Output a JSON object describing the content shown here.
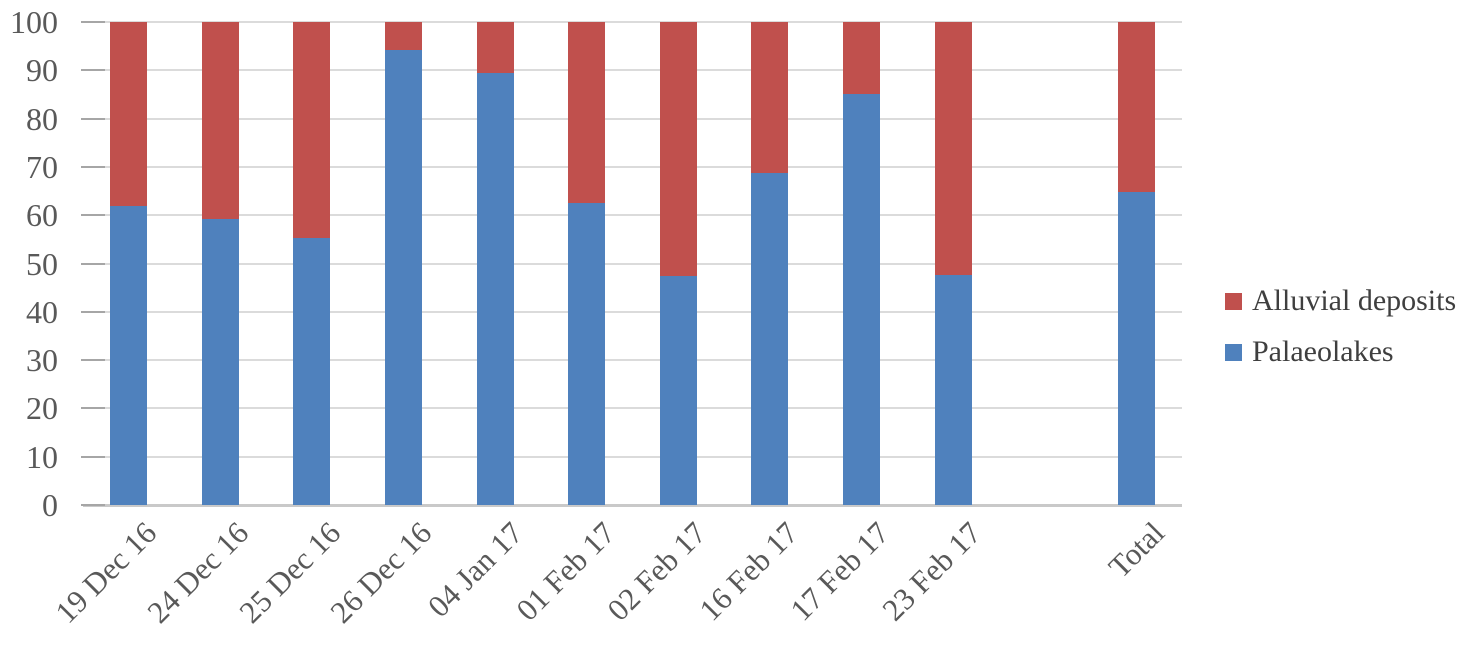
{
  "chart_data": {
    "type": "bar",
    "stacked": true,
    "orientation": "vertical",
    "title": "",
    "xlabel": "",
    "ylabel": "",
    "ylim": [
      0,
      100
    ],
    "yticks": [
      0,
      10,
      20,
      30,
      40,
      50,
      60,
      70,
      80,
      90,
      100
    ],
    "grid": true,
    "legend_position": "right",
    "categories": [
      "19 Dec 16",
      "24 Dec 16",
      "25 Dec 16",
      "26 Dec 16",
      "04 Jan 17",
      "01 Feb 17",
      "02 Feb 17",
      "16 Feb 17",
      "17 Feb 17",
      "23 Feb 17",
      "",
      "Total"
    ],
    "series": [
      {
        "name": "Palaeolakes",
        "color": "#4F81BD",
        "values": [
          61.9,
          59.3,
          55.3,
          94.3,
          89.4,
          62.5,
          47.4,
          68.7,
          85.0,
          47.6,
          null,
          64.8
        ]
      },
      {
        "name": "Alluvial deposits",
        "color": "#C0504D",
        "values": [
          38.1,
          40.7,
          44.7,
          5.7,
          10.6,
          37.5,
          52.6,
          31.3,
          15.0,
          52.4,
          null,
          35.2
        ]
      }
    ]
  },
  "legend": {
    "items": [
      {
        "label": "Alluvial deposits",
        "color": "#C0504D"
      },
      {
        "label": "Palaeolakes",
        "color": "#4F81BD"
      }
    ]
  },
  "colors": {
    "gridline": "#DBDBDB",
    "tick": "#A6A6A6",
    "axis_line": "#C9C9C9",
    "axis_text": "#595959",
    "legend_text": "#3F3F3F"
  }
}
